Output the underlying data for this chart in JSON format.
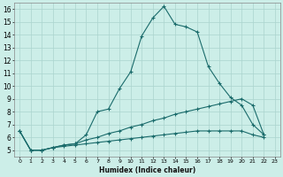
{
  "title": "",
  "xlabel": "Humidex (Indice chaleur)",
  "bg_color": "#cceee8",
  "grid_color": "#aad4ce",
  "line_color": "#1a6b6b",
  "xlim": [
    -0.5,
    23.5
  ],
  "ylim": [
    4.5,
    16.5
  ],
  "yticks": [
    5,
    6,
    7,
    8,
    9,
    10,
    11,
    12,
    13,
    14,
    15,
    16
  ],
  "xticks": [
    0,
    1,
    2,
    3,
    4,
    5,
    6,
    7,
    8,
    9,
    10,
    11,
    12,
    13,
    14,
    15,
    16,
    17,
    18,
    19,
    20,
    21,
    22,
    23
  ],
  "series": [
    {
      "x": [
        0,
        1,
        2,
        3,
        4,
        5,
        6,
        7,
        8,
        9,
        10,
        11,
        12,
        13,
        14,
        15,
        16,
        17,
        18,
        19,
        20,
        21,
        22
      ],
      "y": [
        6.5,
        5.0,
        5.0,
        5.2,
        5.4,
        5.5,
        6.2,
        8.0,
        8.2,
        9.8,
        11.1,
        13.9,
        15.3,
        16.2,
        14.8,
        14.6,
        14.2,
        11.5,
        10.2,
        9.1,
        8.5,
        7.0,
        6.2
      ]
    },
    {
      "x": [
        0,
        1,
        2,
        3,
        4,
        5,
        6,
        7,
        8,
        9,
        10,
        11,
        12,
        13,
        14,
        15,
        16,
        17,
        18,
        19,
        20,
        21,
        22
      ],
      "y": [
        6.5,
        5.0,
        5.0,
        5.2,
        5.4,
        5.5,
        5.8,
        6.0,
        6.3,
        6.5,
        6.8,
        7.0,
        7.3,
        7.5,
        7.8,
        8.0,
        8.2,
        8.4,
        8.6,
        8.8,
        9.0,
        8.5,
        6.2
      ]
    },
    {
      "x": [
        0,
        1,
        2,
        3,
        4,
        5,
        6,
        7,
        8,
        9,
        10,
        11,
        12,
        13,
        14,
        15,
        16,
        17,
        18,
        19,
        20,
        21,
        22
      ],
      "y": [
        6.5,
        5.0,
        5.0,
        5.2,
        5.3,
        5.4,
        5.5,
        5.6,
        5.7,
        5.8,
        5.9,
        6.0,
        6.1,
        6.2,
        6.3,
        6.4,
        6.5,
        6.5,
        6.5,
        6.5,
        6.5,
        6.2,
        6.0
      ]
    }
  ]
}
